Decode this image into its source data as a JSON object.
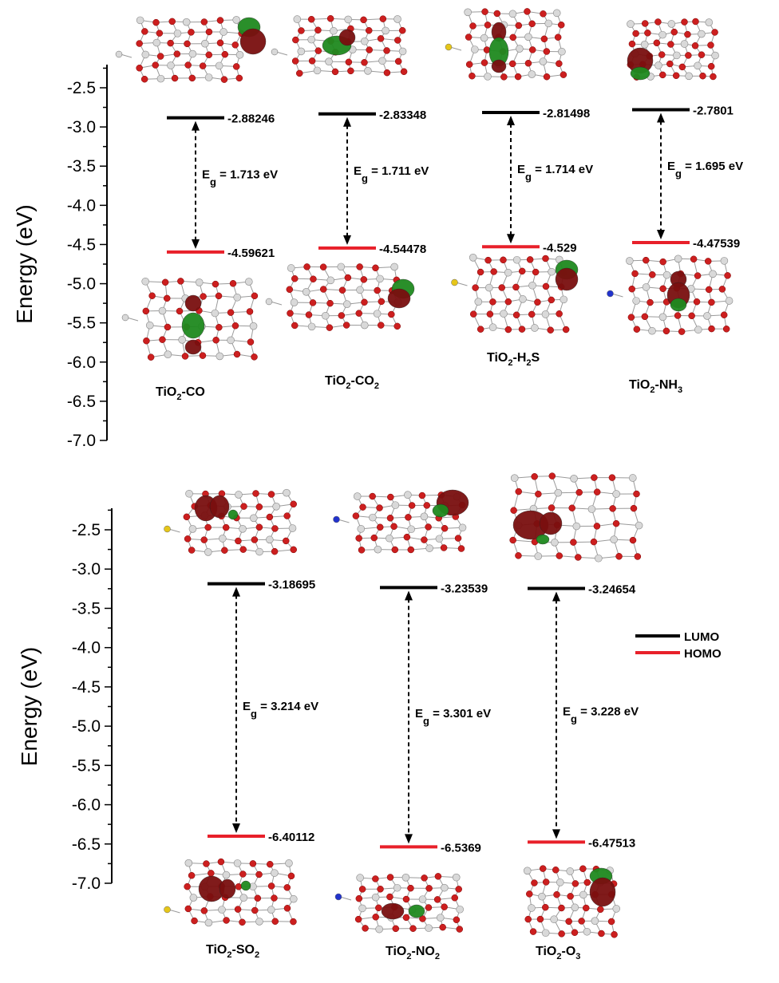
{
  "colors": {
    "lumo": "#000000",
    "homo": "#e8202a",
    "oxygen": "#cc1f1f",
    "titanium": "#d9d9d9",
    "orbital_red": "#7a0f0f",
    "orbital_green": "#1f8a1f",
    "sulfur": "#e6c619",
    "nitrogen": "#2233cc"
  },
  "legend": {
    "lumo": "LUMO",
    "homo": "HOMO"
  },
  "chart_data": [
    {
      "type": "energy-level",
      "ylabel": "Energy (eV)",
      "ylim": [
        -7.0,
        -2.2
      ],
      "yticks": [
        "-2.5",
        "-3.0",
        "-3.5",
        "-4.0",
        "-4.5",
        "-5.0",
        "-5.5",
        "-6.0",
        "-6.5",
        "-7.0"
      ],
      "systems": [
        {
          "name": "TiO",
          "sub": "2",
          "suffix": "-CO",
          "suffix_sub": "",
          "lumo": -2.88246,
          "homo": -4.59621,
          "lumo_label": "-2.88246",
          "homo_label": "-4.59621",
          "eg": "= 1.713 eV"
        },
        {
          "name": "TiO",
          "sub": "2",
          "suffix": "-CO",
          "suffix_sub": "2",
          "lumo": -2.83348,
          "homo": -4.54478,
          "lumo_label": "-2.83348",
          "homo_label": "-4.54478",
          "eg": "= 1.711 eV"
        },
        {
          "name": "TiO",
          "sub": "2",
          "suffix": "-H",
          "suffix_sub": "2",
          "suffix_tail": "S",
          "lumo": -2.81498,
          "homo": -4.529,
          "lumo_label": "-2.81498",
          "homo_label": "-4.529",
          "eg": "= 1.714 eV"
        },
        {
          "name": "TiO",
          "sub": "2",
          "suffix": "-NH",
          "suffix_sub": "3",
          "lumo": -2.7801,
          "homo": -4.47539,
          "lumo_label": "-2.7801",
          "homo_label": "-4.47539",
          "eg": "= 1.695 eV"
        }
      ]
    },
    {
      "type": "energy-level",
      "ylabel": "Energy (eV)",
      "ylim": [
        -7.0,
        -2.2
      ],
      "yticks": [
        "-2.5",
        "-3.0",
        "-3.5",
        "-4.0",
        "-4.5",
        "-5.0",
        "-5.5",
        "-6.0",
        "-6.5",
        "-7.0"
      ],
      "systems": [
        {
          "name": "TiO",
          "sub": "2",
          "suffix": "-SO",
          "suffix_sub": "2",
          "lumo": -3.18695,
          "homo": -6.40112,
          "lumo_label": "-3.18695",
          "homo_label": "-6.40112",
          "eg": "= 3.214 eV"
        },
        {
          "name": "TiO",
          "sub": "2",
          "suffix": "-NO",
          "suffix_sub": "2",
          "lumo": -3.23539,
          "homo": -6.5369,
          "lumo_label": "-3.23539",
          "homo_label": "-6.5369",
          "eg": "= 3.301 eV"
        },
        {
          "name": "TiO",
          "sub": "2",
          "suffix": "-O",
          "suffix_sub": "3",
          "lumo": -3.24654,
          "homo": -6.47513,
          "lumo_label": "-3.24654",
          "homo_label": "-6.47513",
          "eg": "= 3.228 eV"
        }
      ]
    }
  ]
}
